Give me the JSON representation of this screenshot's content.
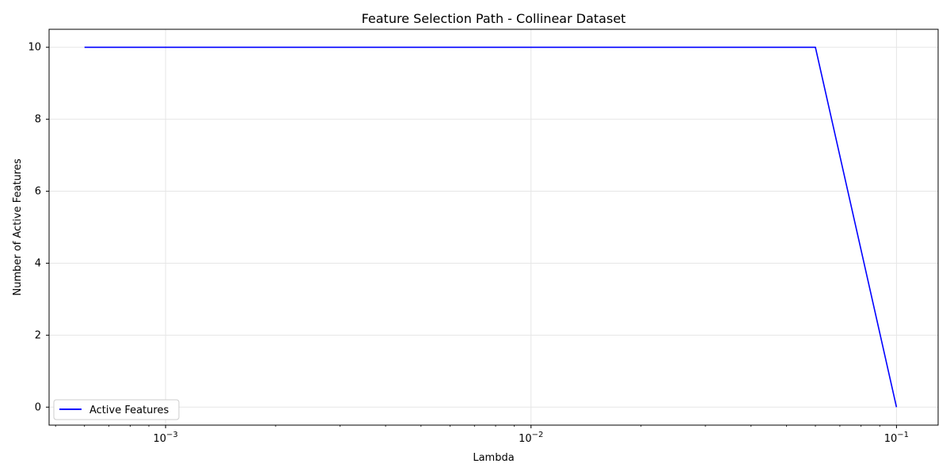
{
  "chart_data": {
    "type": "line",
    "title": "Feature Selection Path - Collinear Dataset",
    "xlabel": "Lambda",
    "ylabel": "Number of Active Features",
    "xscale": "log",
    "xlim": [
      0.00048,
      0.13
    ],
    "ylim": [
      -0.5,
      10.5
    ],
    "x_ticks": [
      {
        "value": 0.001,
        "base": "10",
        "exp": "−3"
      },
      {
        "value": 0.01,
        "base": "10",
        "exp": "−2"
      },
      {
        "value": 0.1,
        "base": "10",
        "exp": "−1"
      }
    ],
    "y_ticks": [
      0,
      2,
      4,
      6,
      8,
      10
    ],
    "grid": true,
    "legend_position": "lower-left",
    "series": [
      {
        "name": "Active Features",
        "color": "#0000ff",
        "x": [
          0.0006,
          0.06,
          0.1
        ],
        "y": [
          10,
          10,
          0
        ]
      }
    ]
  }
}
